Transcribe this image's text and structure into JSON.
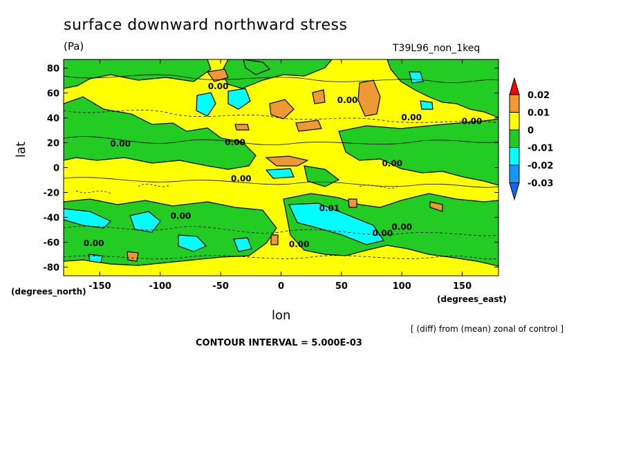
{
  "header": {
    "title": "surface downward northward stress",
    "units": "(Pa)",
    "run": "T39L96_non_1keq"
  },
  "footer": {
    "note": "[ (diff) from (mean) zonal of control ]",
    "contour": "CONTOUR INTERVAL = 5.000E-03"
  },
  "chart_data": {
    "type": "contour",
    "title": "surface downward northward stress",
    "subtitle": "(Pa)",
    "annotation": "T39L96_non_1keq",
    "xlabel": "lon",
    "ylabel": "lat",
    "x_unit_label": "(degrees_east)",
    "y_unit_label": "(degrees_north)",
    "xlim": [
      -180,
      180
    ],
    "ylim": [
      -87,
      87
    ],
    "xticks": [
      -150,
      -100,
      -50,
      0,
      50,
      100,
      150
    ],
    "yticks": [
      -80,
      -60,
      -40,
      -20,
      0,
      20,
      40,
      60,
      80
    ],
    "contour_interval": 0.005,
    "colorbar": {
      "levels": [
        "0.02",
        "0.01",
        "0",
        "-0.01",
        "-0.02",
        "-0.03"
      ],
      "colors": [
        "#ff0000",
        "#ee9933",
        "#ffff00",
        "#22cc22",
        "#00ffff",
        "#1199ff",
        "#1166ff"
      ]
    },
    "contour_labels": [
      {
        "text": "0.00",
        "lon": -133,
        "lat": 17
      },
      {
        "text": "0.00",
        "lon": -52,
        "lat": 63
      },
      {
        "text": "0.00",
        "lon": -38,
        "lat": 18
      },
      {
        "text": "0.00",
        "lon": -33,
        "lat": -11
      },
      {
        "text": "0.00",
        "lon": -83,
        "lat": -41
      },
      {
        "text": "0.00",
        "lon": -155,
        "lat": -63
      },
      {
        "text": "0.00",
        "lon": 15,
        "lat": -64
      },
      {
        "text": "0.01",
        "lon": 40,
        "lat": -35
      },
      {
        "text": "0.00",
        "lon": 92,
        "lat": 1
      },
      {
        "text": "0.00",
        "lon": 108,
        "lat": 38
      },
      {
        "text": "0.00",
        "lon": 158,
        "lat": 35
      },
      {
        "text": "0.00",
        "lon": 84,
        "lat": -55
      },
      {
        "text": "0.00",
        "lon": 100,
        "lat": -50
      },
      {
        "text": "0.00",
        "lon": 55,
        "lat": 52
      }
    ]
  }
}
